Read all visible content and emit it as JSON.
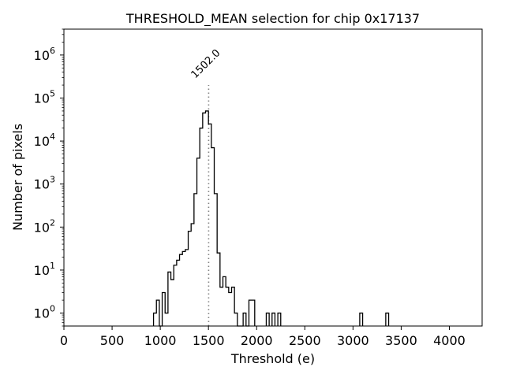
{
  "chart_data": {
    "type": "histogram",
    "title": "THRESHOLD_MEAN selection for chip 0x17137",
    "xlabel": "Threshold (e)",
    "ylabel": "Number of pixels",
    "xlim": [
      0,
      4340
    ],
    "ylim": [
      0.5,
      4000000
    ],
    "yscale": "log",
    "xticks": [
      0,
      500,
      1000,
      1500,
      2000,
      2500,
      3000,
      3500,
      4000
    ],
    "yticks": [
      {
        "value": 1,
        "base": "10",
        "exp": "0"
      },
      {
        "value": 10,
        "base": "10",
        "exp": "1"
      },
      {
        "value": 100,
        "base": "10",
        "exp": "2"
      },
      {
        "value": 1000,
        "base": "10",
        "exp": "3"
      },
      {
        "value": 10000,
        "base": "10",
        "exp": "4"
      },
      {
        "value": 100000,
        "base": "10",
        "exp": "5"
      },
      {
        "value": 1000000,
        "base": "10",
        "exp": "6"
      }
    ],
    "bins": [
      {
        "x0": 930,
        "x1": 960,
        "count": 1
      },
      {
        "x0": 960,
        "x1": 990,
        "count": 2
      },
      {
        "x0": 990,
        "x1": 1020,
        "count": 0.5
      },
      {
        "x0": 1020,
        "x1": 1050,
        "count": 3
      },
      {
        "x0": 1050,
        "x1": 1080,
        "count": 1
      },
      {
        "x0": 1080,
        "x1": 1110,
        "count": 9
      },
      {
        "x0": 1110,
        "x1": 1140,
        "count": 6
      },
      {
        "x0": 1140,
        "x1": 1170,
        "count": 13
      },
      {
        "x0": 1170,
        "x1": 1200,
        "count": 17
      },
      {
        "x0": 1200,
        "x1": 1230,
        "count": 23
      },
      {
        "x0": 1230,
        "x1": 1260,
        "count": 27
      },
      {
        "x0": 1260,
        "x1": 1290,
        "count": 30
      },
      {
        "x0": 1290,
        "x1": 1320,
        "count": 80
      },
      {
        "x0": 1320,
        "x1": 1350,
        "count": 120
      },
      {
        "x0": 1350,
        "x1": 1380,
        "count": 600
      },
      {
        "x0": 1380,
        "x1": 1410,
        "count": 4000
      },
      {
        "x0": 1410,
        "x1": 1440,
        "count": 20000
      },
      {
        "x0": 1440,
        "x1": 1470,
        "count": 45000
      },
      {
        "x0": 1470,
        "x1": 1500,
        "count": 50000
      },
      {
        "x0": 1500,
        "x1": 1530,
        "count": 25000
      },
      {
        "x0": 1530,
        "x1": 1560,
        "count": 7000
      },
      {
        "x0": 1560,
        "x1": 1590,
        "count": 600
      },
      {
        "x0": 1590,
        "x1": 1620,
        "count": 25
      },
      {
        "x0": 1620,
        "x1": 1650,
        "count": 4
      },
      {
        "x0": 1650,
        "x1": 1680,
        "count": 7
      },
      {
        "x0": 1680,
        "x1": 1710,
        "count": 4
      },
      {
        "x0": 1710,
        "x1": 1740,
        "count": 3
      },
      {
        "x0": 1740,
        "x1": 1770,
        "count": 4
      },
      {
        "x0": 1770,
        "x1": 1800,
        "count": 1
      },
      {
        "x0": 1800,
        "x1": 1830,
        "count": 0.5
      },
      {
        "x0": 1830,
        "x1": 1860,
        "count": 0.5
      },
      {
        "x0": 1860,
        "x1": 1890,
        "count": 1
      },
      {
        "x0": 1890,
        "x1": 1920,
        "count": 0.5
      },
      {
        "x0": 1920,
        "x1": 1950,
        "count": 2
      },
      {
        "x0": 1950,
        "x1": 1980,
        "count": 2
      },
      {
        "x0": 2100,
        "x1": 2130,
        "count": 1
      },
      {
        "x0": 2160,
        "x1": 2190,
        "count": 1
      },
      {
        "x0": 2220,
        "x1": 2250,
        "count": 1
      },
      {
        "x0": 3070,
        "x1": 3100,
        "count": 1
      },
      {
        "x0": 3340,
        "x1": 3370,
        "count": 1
      }
    ],
    "threshold_line": {
      "x": 1502,
      "label": "1502.0",
      "ymax": 200000
    }
  }
}
